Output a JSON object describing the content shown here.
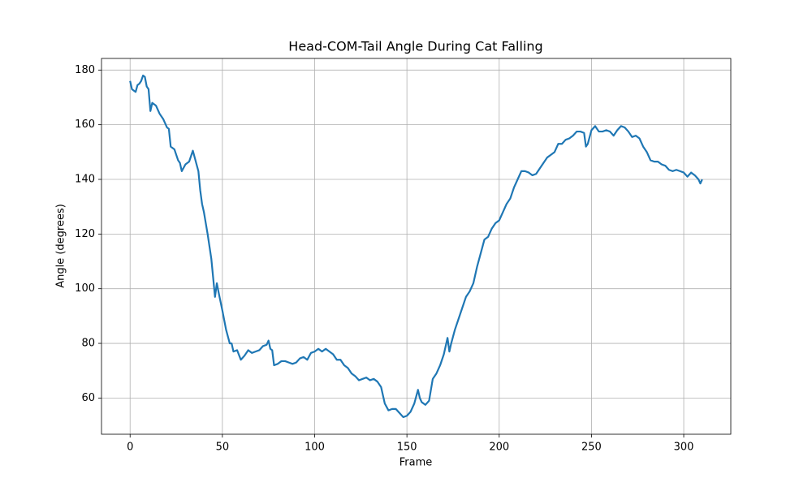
{
  "chart_data": {
    "type": "line",
    "title": "Head-COM-Tail Angle During Cat Falling",
    "x_label": "Frame",
    "y_label": "Angle (degrees)",
    "color": "#1f77b4",
    "grid": true,
    "x": [
      0,
      1,
      2,
      3,
      4,
      5,
      6,
      7,
      8,
      9,
      10,
      11,
      12,
      14,
      16,
      18,
      20,
      21,
      22,
      24,
      26,
      27,
      28,
      30,
      32,
      34,
      36,
      37,
      38,
      39,
      40,
      42,
      44,
      46,
      47,
      48,
      50,
      52,
      54,
      55,
      56,
      58,
      60,
      62,
      64,
      66,
      68,
      70,
      72,
      74,
      75,
      76,
      77,
      78,
      80,
      82,
      84,
      86,
      88,
      90,
      92,
      94,
      96,
      98,
      100,
      102,
      104,
      106,
      108,
      110,
      112,
      114,
      116,
      118,
      120,
      122,
      124,
      126,
      128,
      130,
      132,
      134,
      136,
      138,
      140,
      142,
      144,
      146,
      148,
      150,
      152,
      154,
      156,
      157,
      158,
      160,
      162,
      164,
      166,
      168,
      170,
      172,
      173,
      174,
      176,
      178,
      180,
      182,
      184,
      186,
      188,
      190,
      192,
      194,
      196,
      198,
      200,
      202,
      204,
      206,
      208,
      210,
      212,
      214,
      216,
      218,
      220,
      222,
      224,
      226,
      228,
      230,
      232,
      234,
      236,
      238,
      240,
      242,
      244,
      246,
      247,
      248,
      250,
      252,
      254,
      256,
      258,
      260,
      262,
      264,
      266,
      268,
      270,
      272,
      274,
      276,
      278,
      280,
      282,
      284,
      286,
      288,
      290,
      292,
      294,
      296,
      298,
      300,
      302,
      304,
      306,
      308,
      309,
      310
    ],
    "values": [
      176,
      173,
      172.5,
      172,
      174.5,
      175,
      176,
      178,
      177.5,
      174,
      173,
      165,
      168,
      167,
      164,
      162,
      159,
      158.5,
      152,
      151,
      147,
      146,
      143,
      145.5,
      146.5,
      150.5,
      145.5,
      143,
      136,
      131,
      128,
      120,
      111,
      97,
      102,
      98.5,
      92,
      85,
      80,
      80,
      77,
      77.5,
      74,
      75.5,
      77.5,
      76.5,
      77,
      77.5,
      79,
      79.5,
      81,
      78,
      77.5,
      72,
      72.5,
      73.5,
      73.5,
      73,
      72.5,
      73,
      74.5,
      75,
      74,
      76.5,
      77,
      78,
      77,
      78,
      77,
      76,
      74,
      74,
      72,
      71,
      69,
      68,
      66.5,
      67,
      67.5,
      66.5,
      67,
      66,
      64,
      58,
      55.5,
      56,
      56,
      54.5,
      53,
      53.5,
      55,
      58,
      63,
      60,
      58.5,
      57.5,
      59,
      67,
      69,
      72,
      76,
      82,
      77,
      80,
      85,
      89,
      93,
      97,
      99,
      102,
      108,
      113,
      118,
      119,
      122,
      124,
      125,
      128,
      131,
      133,
      137,
      140,
      143,
      143,
      142.5,
      141.5,
      142,
      144,
      146,
      148,
      149,
      150,
      153,
      153,
      154.5,
      155,
      156,
      157.5,
      157.5,
      157,
      152,
      153,
      158,
      159.5,
      157.5,
      157.5,
      158,
      157.5,
      156,
      158,
      159.5,
      159,
      157.5,
      155.5,
      156,
      155,
      152,
      150,
      147,
      146.5,
      146.5,
      145.5,
      145,
      143.5,
      143,
      143.5,
      143,
      142.5,
      141,
      142.5,
      141.5,
      140,
      138.5,
      140
    ],
    "xlim": [
      -15.5,
      325.5
    ],
    "ylim": [
      46.75,
      184.25
    ],
    "xticks": [
      0,
      50,
      100,
      150,
      200,
      250,
      300
    ],
    "yticks": [
      60,
      80,
      100,
      120,
      140,
      160,
      180
    ]
  }
}
